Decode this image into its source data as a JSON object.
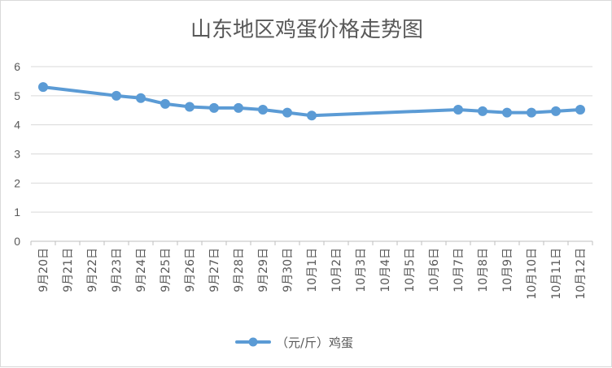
{
  "chart_data": {
    "type": "line",
    "title": "山东地区鸡蛋价格走势图",
    "xlabel": "",
    "ylabel": "",
    "ylim": [
      0,
      6
    ],
    "yticks": [
      "0",
      "1",
      "2",
      "3",
      "4",
      "5",
      "6"
    ],
    "grid": true,
    "legend_position": "bottom",
    "categories": [
      "9月20日",
      "9月21日",
      "9月22日",
      "9月23日",
      "9月24日",
      "9月25日",
      "9月26日",
      "9月27日",
      "9月28日",
      "9月29日",
      "9月30日",
      "10月1日",
      "10月2日",
      "10月3日",
      "10月4日",
      "10月5日",
      "10月6日",
      "10月7日",
      "10月8日",
      "10月9日",
      "10月10日",
      "10月11日",
      "10月12日"
    ],
    "series": [
      {
        "name": "（元/斤）鸡蛋",
        "color": "#5b9bd5",
        "values": [
          5.3,
          null,
          null,
          5.0,
          4.92,
          4.72,
          4.62,
          4.58,
          4.58,
          4.52,
          4.42,
          4.32,
          null,
          null,
          null,
          null,
          null,
          4.52,
          4.47,
          4.42,
          4.42,
          4.47,
          4.52
        ]
      }
    ]
  }
}
